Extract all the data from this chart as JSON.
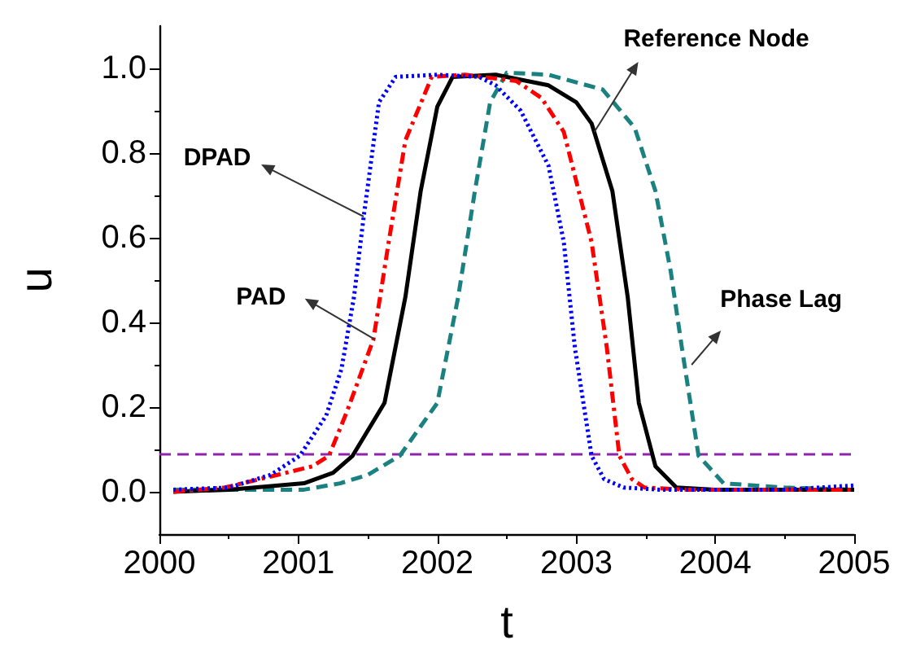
{
  "chart_data": {
    "type": "line",
    "xlabel": "t",
    "ylabel": "u",
    "xlim": [
      2000,
      2005
    ],
    "xticks": [
      2000,
      2001,
      2002,
      2003,
      2004,
      2005
    ],
    "ylim": [
      -0.1,
      1.1
    ],
    "yticks": [
      {
        "value": 0,
        "label": "0.0"
      },
      {
        "value": 0.2,
        "label": "0.2"
      },
      {
        "value": 0.4,
        "label": "0.4"
      },
      {
        "value": 0.6,
        "label": "0.6"
      },
      {
        "value": 0.8,
        "label": "0.8"
      },
      {
        "value": 1,
        "label": "1.0"
      }
    ],
    "grid": false,
    "marker": "none",
    "series": [
      {
        "color": "#0000ff",
        "line_style": "dotted",
        "x": [
          2000.1,
          2000.5,
          2000.8,
          2001.01,
          2001.2,
          2001.31,
          2001.4,
          2001.47,
          2001.58,
          2001.7,
          2002.0,
          2002.3,
          2002.42,
          2002.6,
          2002.8,
          2002.91,
          2002.99,
          2003.11,
          2003.2,
          2003.34,
          2003.6,
          2004.0,
          2004.5,
          2005.0
        ],
        "values": [
          0.005,
          0.01,
          0.04,
          0.085,
          0.18,
          0.29,
          0.46,
          0.65,
          0.92,
          0.98,
          0.985,
          0.98,
          0.96,
          0.9,
          0.77,
          0.59,
          0.34,
          0.085,
          0.03,
          0.01,
          0.005,
          0.005,
          0.005,
          0.015
        ]
      },
      {
        "color": "#ff0000",
        "line_style": "dashdot",
        "x": [
          2000.1,
          2000.47,
          2000.85,
          2001.1,
          2001.22,
          2001.35,
          2001.54,
          2001.65,
          2001.77,
          2001.96,
          2002.2,
          2002.57,
          2002.75,
          2002.91,
          2003.11,
          2003.22,
          2003.31,
          2003.4,
          2003.49,
          2003.8,
          2004.5,
          2005.0
        ],
        "values": [
          0.0,
          0.01,
          0.04,
          0.06,
          0.085,
          0.19,
          0.36,
          0.59,
          0.83,
          0.98,
          0.985,
          0.97,
          0.93,
          0.85,
          0.59,
          0.34,
          0.085,
          0.03,
          0.01,
          0.005,
          0.005,
          0.005
        ]
      },
      {
        "color": "#000000",
        "line_style": "solid",
        "x": [
          2000.1,
          2000.5,
          2001.04,
          2001.25,
          2001.39,
          2001.62,
          2001.77,
          2001.88,
          2002.0,
          2002.11,
          2002.42,
          2002.8,
          2003.0,
          2003.11,
          2003.26,
          2003.37,
          2003.45,
          2003.57,
          2003.72,
          2004.0,
          2004.5,
          2005.0
        ],
        "values": [
          0.0,
          0.005,
          0.02,
          0.045,
          0.085,
          0.21,
          0.46,
          0.71,
          0.91,
          0.98,
          0.985,
          0.96,
          0.92,
          0.87,
          0.71,
          0.46,
          0.21,
          0.06,
          0.01,
          0.005,
          0.005,
          0.005
        ]
      },
      {
        "color": "#1a8080",
        "line_style": "dashed",
        "x": [
          2000.1,
          2000.5,
          2001.04,
          2001.3,
          2001.5,
          2001.73,
          2002.0,
          2002.15,
          2002.27,
          2002.38,
          2002.5,
          2002.8,
          2003.19,
          2003.42,
          2003.57,
          2003.68,
          2003.76,
          2003.88,
          2004.06,
          2004.5,
          2005.0
        ],
        "values": [
          0.005,
          0.005,
          0.005,
          0.02,
          0.04,
          0.085,
          0.21,
          0.46,
          0.71,
          0.92,
          0.99,
          0.985,
          0.95,
          0.86,
          0.71,
          0.52,
          0.34,
          0.085,
          0.02,
          0.01,
          0.005
        ]
      }
    ],
    "ref_lines": [
      {
        "axis": "y",
        "value": 0.085,
        "color": "#8e24aa",
        "line_style": "dashed"
      }
    ],
    "annotations": [
      {
        "text": "DPAD",
        "x": 2001.47,
        "y": 0.65
      },
      {
        "text": "PAD",
        "x": 2001.55,
        "y": 0.36
      },
      {
        "text": "Reference Node",
        "x": 2003.13,
        "y": 0.85
      },
      {
        "text": "Phase Lag",
        "x": 2003.83,
        "y": 0.3
      }
    ]
  }
}
